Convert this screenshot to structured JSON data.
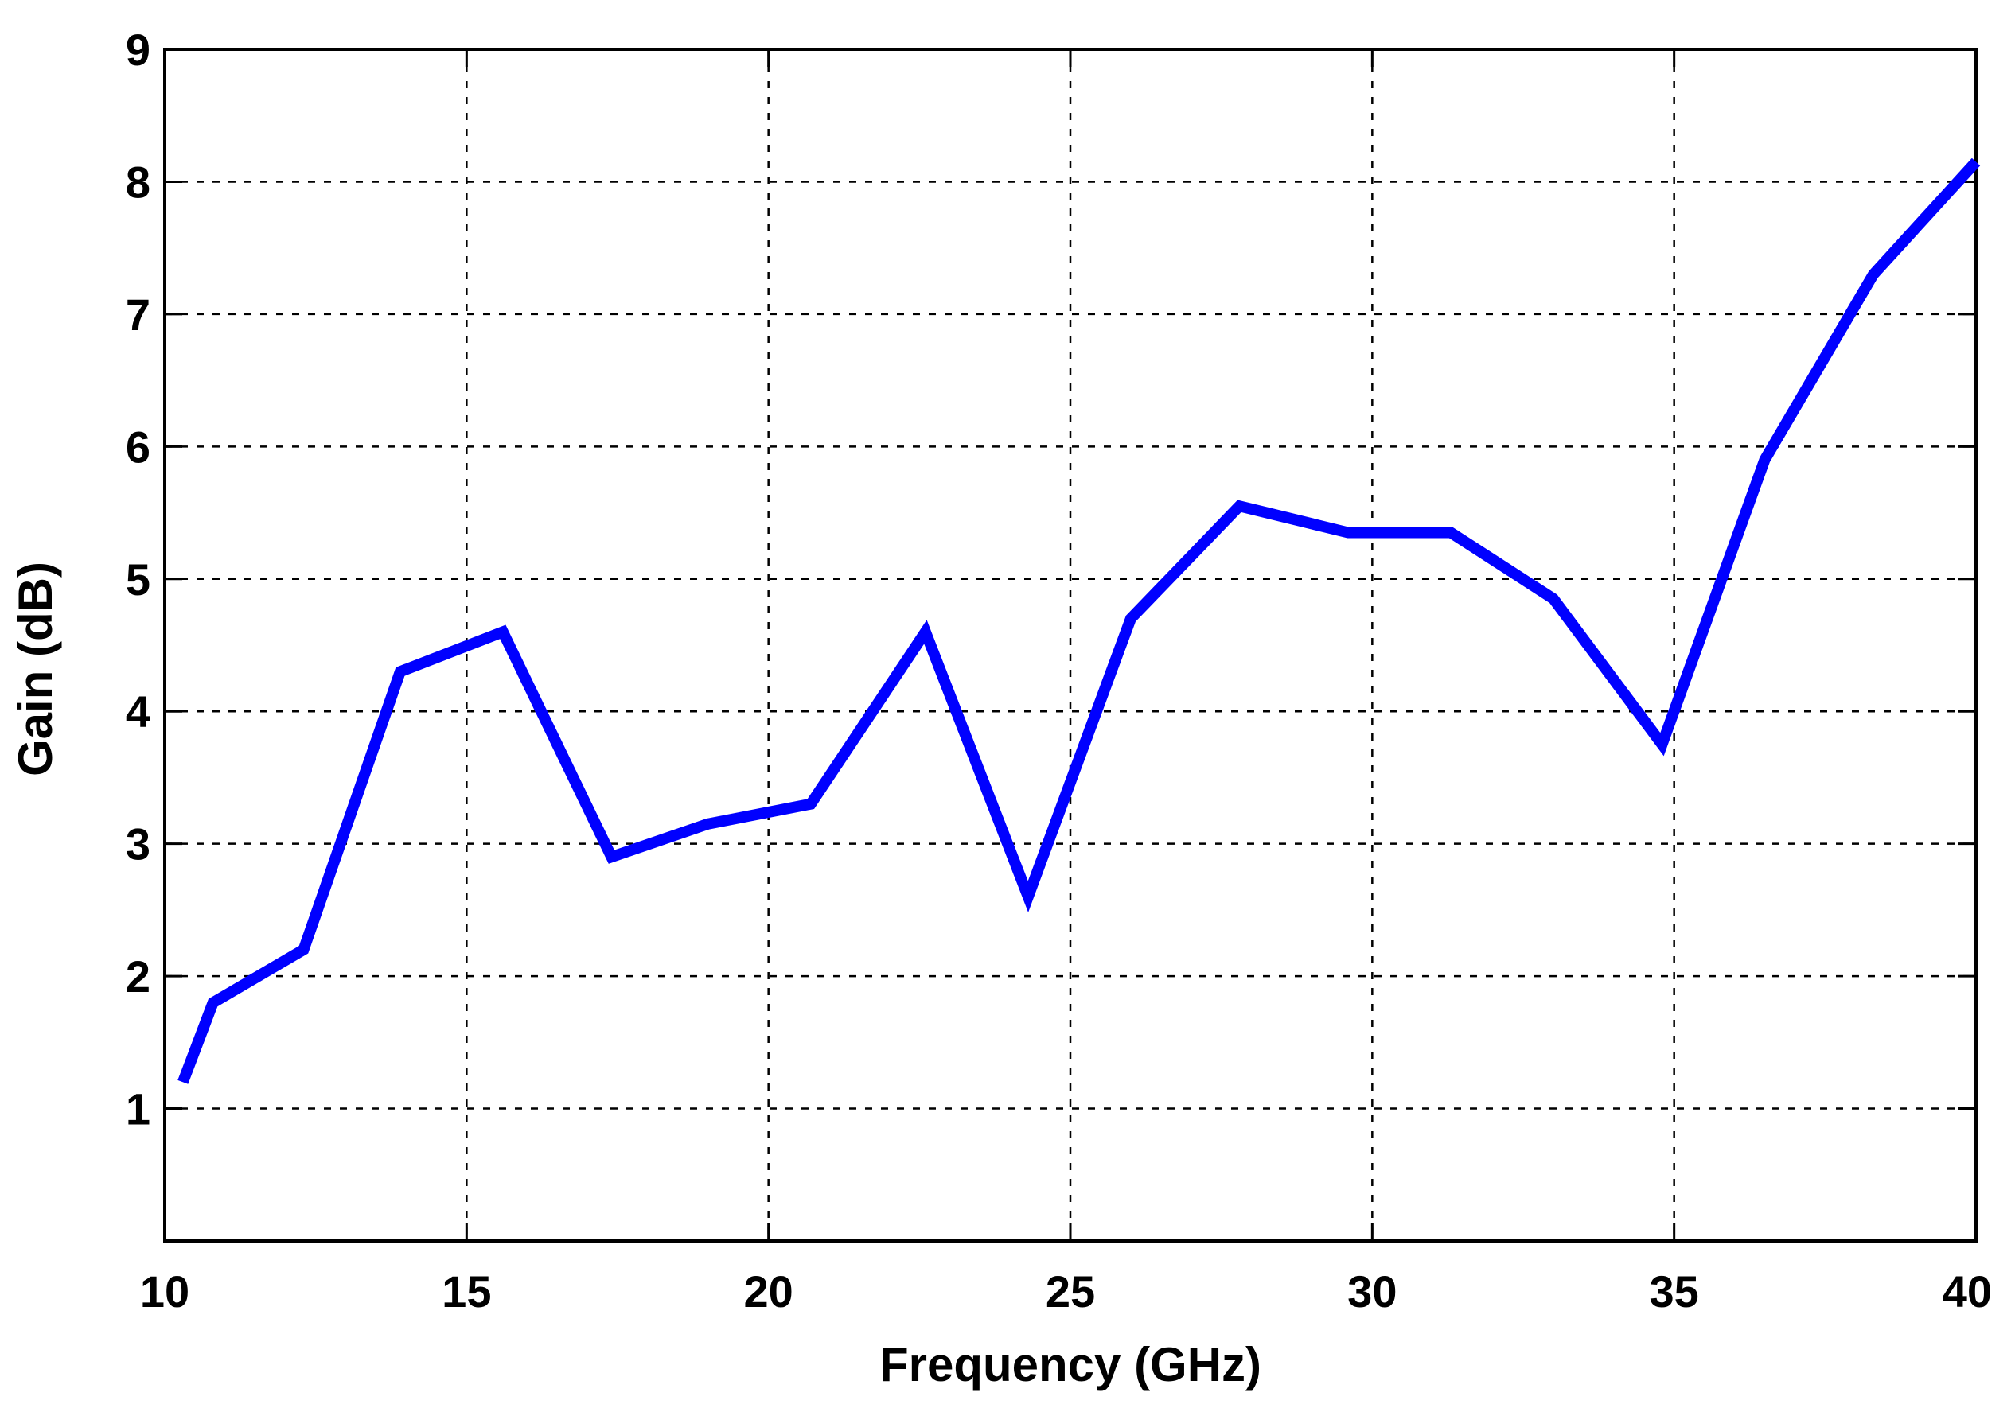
{
  "chart_data": {
    "type": "line",
    "title": "",
    "xlabel": "Frequency (GHz)",
    "ylabel": "Gain (dB)",
    "xlim": [
      10,
      40
    ],
    "ylim": [
      0,
      9
    ],
    "x_ticks": [
      10,
      15,
      20,
      25,
      30,
      35,
      40
    ],
    "y_ticks": [
      1,
      2,
      3,
      4,
      5,
      6,
      7,
      8,
      9
    ],
    "grid": true,
    "grid_style": "dashed",
    "legend": "none",
    "series": [
      {
        "color": "#0000ff",
        "x": [
          10.3,
          10.8,
          12.3,
          13.9,
          15.6,
          17.4,
          19.0,
          20.7,
          22.6,
          24.3,
          26.0,
          27.8,
          29.6,
          31.3,
          33.0,
          34.8,
          36.5,
          38.3,
          40.0
        ],
        "y": [
          1.2,
          1.8,
          2.2,
          4.3,
          4.6,
          2.9,
          3.15,
          3.3,
          4.6,
          2.6,
          4.7,
          5.55,
          5.35,
          5.35,
          4.85,
          3.75,
          5.9,
          7.3,
          8.15
        ]
      }
    ]
  }
}
